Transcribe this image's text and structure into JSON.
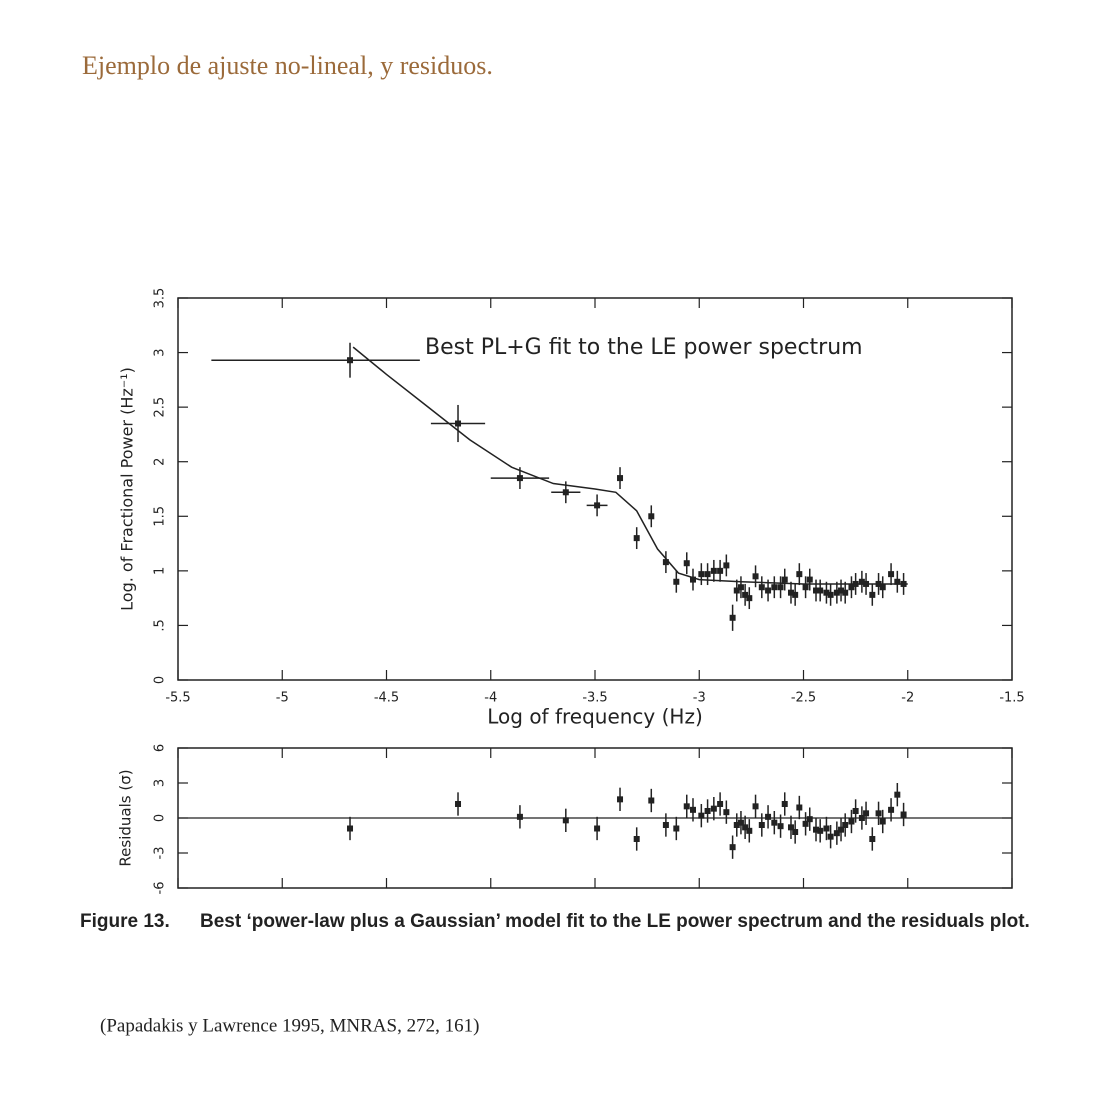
{
  "title": "Ejemplo de ajuste no-lineal, y residuos.",
  "chart_data": [
    {
      "type": "scatter",
      "annotation": "Best PL+G fit to the LE power spectrum",
      "x_label": "Log of frequency (Hz)",
      "y_label": "Log. of Fractional Power (Hz⁻¹)",
      "xlim": [
        -5.5,
        -1.5
      ],
      "xticks": [
        -5.5,
        -5,
        -4.5,
        -4,
        -3.5,
        -3,
        -2.5,
        -2,
        -1.5
      ],
      "ylim": [
        0,
        3.5
      ],
      "yticks": [
        0,
        {
          "value": 0.5,
          "label": ".5"
        },
        1,
        1.5,
        2,
        2.5,
        3,
        3.5
      ],
      "color": "#222222",
      "x": [
        -4.675,
        -4.157,
        -3.86,
        -3.64,
        -3.49,
        -3.38,
        -3.3,
        -3.23,
        -3.16,
        -3.11,
        -3.06,
        -3.03,
        -2.99,
        -2.96,
        -2.93,
        -2.9,
        -2.87,
        -2.84,
        -2.82,
        -2.8,
        -2.78,
        -2.76,
        -2.73,
        -2.7,
        -2.67,
        -2.64,
        -2.61,
        -2.59,
        -2.56,
        -2.54,
        -2.52,
        -2.49,
        -2.47,
        -2.44,
        -2.42,
        -2.39,
        -2.37,
        -2.34,
        -2.32,
        -2.3,
        -2.27,
        -2.25,
        -2.22,
        -2.2,
        -2.17,
        -2.14,
        -2.12,
        -2.08,
        -2.05,
        -2.02
      ],
      "values": [
        2.93,
        2.35,
        1.85,
        1.72,
        1.6,
        1.85,
        1.3,
        1.5,
        1.08,
        0.9,
        1.07,
        0.92,
        0.97,
        0.97,
        1.0,
        1.0,
        1.05,
        0.57,
        0.82,
        0.85,
        0.78,
        0.75,
        0.95,
        0.85,
        0.82,
        0.85,
        0.85,
        0.92,
        0.8,
        0.78,
        0.97,
        0.85,
        0.92,
        0.82,
        0.82,
        0.8,
        0.78,
        0.8,
        0.82,
        0.8,
        0.85,
        0.88,
        0.9,
        0.88,
        0.78,
        0.88,
        0.85,
        0.97,
        0.9,
        0.88
      ],
      "yerr": [
        0.16,
        0.17,
        0.1,
        0.1,
        0.1,
        0.1,
        0.1,
        0.1,
        0.1,
        0.1,
        0.1,
        0.1,
        0.1,
        0.1,
        0.1,
        0.1,
        0.1,
        0.12,
        0.1,
        0.1,
        0.1,
        0.1,
        0.1,
        0.1,
        0.1,
        0.1,
        0.1,
        0.1,
        0.1,
        0.1,
        0.1,
        0.1,
        0.1,
        0.1,
        0.1,
        0.1,
        0.1,
        0.1,
        0.1,
        0.1,
        0.1,
        0.1,
        0.1,
        0.1,
        0.1,
        0.1,
        0.1,
        0.1,
        0.1,
        0.1
      ],
      "xerr": [
        [
          0.665,
          0.335
        ],
        [
          0.13,
          0.13
        ],
        [
          0.14,
          0.14
        ],
        [
          0.07,
          0.07
        ],
        [
          0.05,
          0.05
        ],
        null,
        null,
        null,
        null,
        null,
        null,
        null,
        null,
        null,
        null,
        null,
        null,
        null,
        null,
        null,
        null,
        null,
        null,
        null,
        null,
        null,
        null,
        null,
        null,
        null,
        null,
        null,
        null,
        null,
        null,
        null,
        null,
        null,
        null,
        null,
        null,
        null,
        null,
        null,
        null,
        null,
        null,
        null,
        null,
        null
      ],
      "fit": {
        "x": [
          -4.66,
          -4.5,
          -4.3,
          -4.1,
          -3.9,
          -3.7,
          -3.5,
          -3.4,
          -3.3,
          -3.2,
          -3.1,
          -3.0,
          -2.8,
          -2.5,
          -2.0
        ],
        "values": [
          3.05,
          2.8,
          2.5,
          2.2,
          1.95,
          1.8,
          1.75,
          1.72,
          1.55,
          1.2,
          0.98,
          0.92,
          0.9,
          0.88,
          0.88
        ]
      }
    },
    {
      "type": "scatter",
      "y_label": "Residuals (σ)",
      "xlim": [
        -5.5,
        -1.5
      ],
      "ylim": [
        -6,
        6
      ],
      "yticks": [
        -6,
        -3,
        0,
        3,
        6
      ],
      "color": "#222222",
      "x": [
        -4.675,
        -4.157,
        -3.86,
        -3.64,
        -3.49,
        -3.38,
        -3.3,
        -3.23,
        -3.16,
        -3.11,
        -3.06,
        -3.03,
        -2.99,
        -2.96,
        -2.93,
        -2.9,
        -2.87,
        -2.84,
        -2.82,
        -2.8,
        -2.78,
        -2.76,
        -2.73,
        -2.7,
        -2.67,
        -2.64,
        -2.61,
        -2.59,
        -2.56,
        -2.54,
        -2.52,
        -2.49,
        -2.47,
        -2.44,
        -2.42,
        -2.39,
        -2.37,
        -2.34,
        -2.32,
        -2.3,
        -2.27,
        -2.25,
        -2.22,
        -2.2,
        -2.17,
        -2.14,
        -2.12,
        -2.08,
        -2.05,
        -2.02
      ],
      "values": [
        -0.9,
        1.2,
        0.1,
        -0.2,
        -0.9,
        1.6,
        -1.8,
        1.5,
        -0.6,
        -0.9,
        1.0,
        0.7,
        0.2,
        0.6,
        0.8,
        1.2,
        0.5,
        -2.5,
        -0.6,
        -0.4,
        -0.8,
        -1.1,
        1.0,
        -0.6,
        0.1,
        -0.4,
        -0.7,
        1.2,
        -0.8,
        -1.2,
        0.9,
        -0.5,
        -0.1,
        -1.0,
        -1.1,
        -0.9,
        -1.6,
        -1.3,
        -1.0,
        -0.6,
        -0.3,
        0.6,
        0.0,
        0.4,
        -1.8,
        0.4,
        -0.3,
        0.7,
        2.0,
        0.3
      ],
      "yerr": [
        1,
        1,
        1,
        1,
        1,
        1,
        1,
        1,
        1,
        1,
        1,
        1,
        1,
        1,
        1,
        1,
        1,
        1,
        1,
        1,
        1,
        1,
        1,
        1,
        1,
        1,
        1,
        1,
        1,
        1,
        1,
        1,
        1,
        1,
        1,
        1,
        1,
        1,
        1,
        1,
        1,
        1,
        1,
        1,
        1,
        1,
        1,
        1,
        1,
        1
      ]
    }
  ],
  "caption": {
    "label": "Figure 13.",
    "text": "Best ‘power-law plus a Gaussian’ model fit to the LE power spectrum and the residuals plot."
  },
  "source": "(Papadakis  y Lawrence 1995, MNRAS, 272, 161)"
}
